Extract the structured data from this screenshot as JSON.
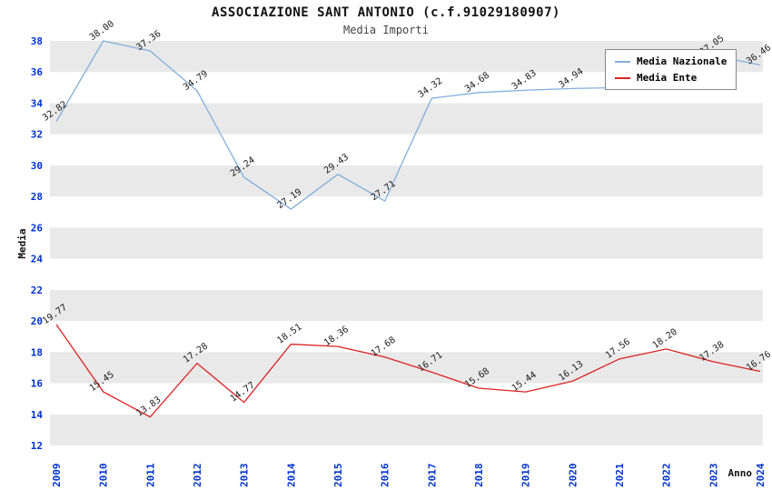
{
  "header": {
    "title": "ASSOCIAZIONE SANT ANTONIO (c.f.91029180907)",
    "subtitle": "Media Importi"
  },
  "chart_data": {
    "type": "line",
    "x": [
      "2009",
      "2010",
      "2011",
      "2012",
      "2013",
      "2014",
      "2015",
      "2016",
      "2017",
      "2018",
      "2019",
      "2020",
      "2021",
      "2022",
      "2023",
      "2024"
    ],
    "series": [
      {
        "name": "Media Nazionale",
        "color": "#82aedd",
        "values": [
          32.82,
          38.0,
          37.36,
          34.79,
          29.24,
          27.19,
          29.43,
          27.71,
          34.32,
          34.68,
          34.83,
          34.94,
          35.0,
          35.3,
          37.05,
          36.46
        ],
        "labels": [
          "32.82",
          "38.00",
          "37.36",
          "34.79",
          "29.24",
          "27.19",
          "29.43",
          "27.71",
          "34.32",
          "34.68",
          "34.83",
          "34.94",
          "",
          "",
          "37.05",
          "36.46"
        ]
      },
      {
        "name": "Media Ente",
        "color": "#dd2222",
        "values": [
          19.77,
          15.45,
          13.83,
          17.28,
          14.77,
          18.51,
          18.36,
          17.68,
          16.71,
          15.68,
          15.44,
          16.13,
          17.56,
          18.2,
          17.38,
          16.76
        ],
        "labels": [
          "19.77",
          "15.45",
          "13.83",
          "17.28",
          "14.77",
          "18.51",
          "18.36",
          "17.68",
          "16.71",
          "15.68",
          "15.44",
          "16.13",
          "17.56",
          "18.20",
          "17.38",
          "16.76"
        ]
      }
    ],
    "ylabel": "Media",
    "xlabel": "Anno",
    "ylim": [
      12,
      38
    ],
    "ytick_step": 2,
    "yticks": [
      "12",
      "14",
      "16",
      "18",
      "20",
      "22",
      "24",
      "26",
      "28",
      "30",
      "32",
      "34",
      "36",
      "38"
    ],
    "legend_position": "top-right",
    "grid": "banded",
    "band_color": "#e9e9e9",
    "tick_color": "#0033cc",
    "label_color": "#1a1a1a"
  }
}
